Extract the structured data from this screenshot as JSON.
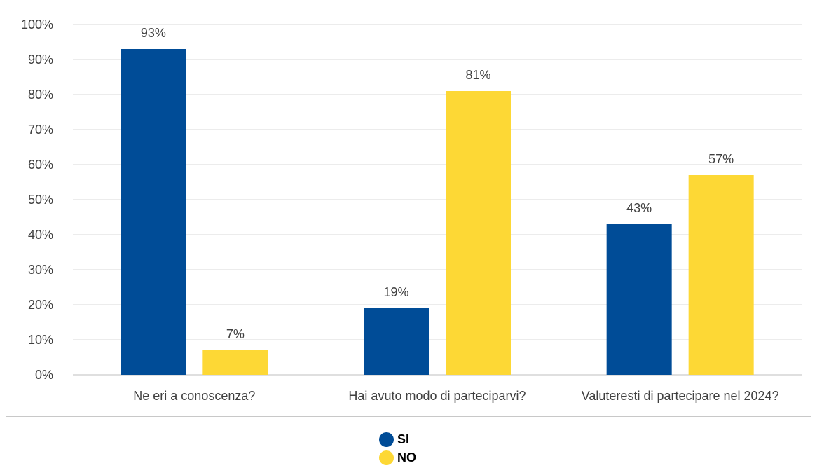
{
  "chart_data": {
    "type": "bar",
    "categories": [
      "Ne eri a conoscenza?",
      "Hai avuto modo di parteciparvi?",
      "Valuteresti di partecipare nel 2024?"
    ],
    "series": [
      {
        "name": "SI",
        "values": [
          93,
          19,
          43
        ],
        "color": "#004c97"
      },
      {
        "name": "NO",
        "values": [
          7,
          81,
          57
        ],
        "color": "#fdd835"
      }
    ],
    "ylim": [
      0,
      100
    ],
    "yticks": [
      "0%",
      "10%",
      "20%",
      "30%",
      "40%",
      "50%",
      "60%",
      "70%",
      "80%",
      "90%",
      "100%"
    ],
    "data_labels": [
      [
        "93%",
        "19%",
        "43%"
      ],
      [
        "7%",
        "81%",
        "57%"
      ]
    ],
    "grid": true,
    "legend_position": "bottom"
  }
}
